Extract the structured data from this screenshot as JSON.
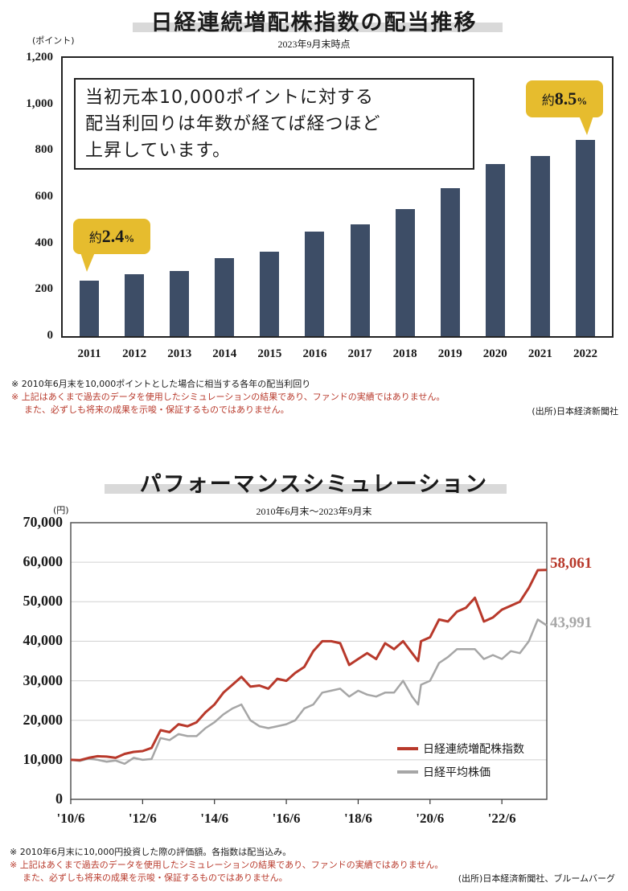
{
  "chart_data": [
    {
      "type": "bar",
      "title": "日経連続増配株指数の配当推移",
      "subtitle": "2023年9月末時点",
      "ylabel": "(ポイント)",
      "ylim": [
        0,
        1200
      ],
      "yticks": [
        "1,200",
        "1,000",
        "800",
        "600",
        "400",
        "200",
        "0"
      ],
      "ytick_values": [
        1200,
        1000,
        800,
        600,
        400,
        200,
        0
      ],
      "categories": [
        "2011",
        "2012",
        "2013",
        "2014",
        "2015",
        "2016",
        "2017",
        "2018",
        "2019",
        "2020",
        "2021",
        "2022"
      ],
      "values": [
        240,
        268,
        280,
        337,
        365,
        450,
        482,
        548,
        637,
        742,
        777,
        845
      ],
      "bar_color": "#3d4d66",
      "callout_lines": [
        "当初元本10,000ポイントに対する",
        "配当利回りは年数が経てば経つほど",
        "上昇しています。"
      ],
      "badge_first": {
        "prefix": "約",
        "value": "2.4",
        "suffix": "%"
      },
      "badge_last": {
        "prefix": "約",
        "value": "8.5",
        "suffix": "%"
      },
      "badge_color": "#e6bc2e",
      "notes": {
        "black": "※ 2010年6月末を10,000ポイントとした場合に相当する各年の配当利回り",
        "red1": "※ 上記はあくまで過去のデータを使用したシミュレーションの結果であり、ファンドの実績ではありません。",
        "red2": "また、必ずしも将来の成果を示唆・保証するものではありません。"
      },
      "source": "(出所)日本経済新聞社"
    },
    {
      "type": "line",
      "title": "パフォーマンスシミュレーション",
      "subtitle": "2010年6月末〜2023年9月末",
      "ylabel": "(円)",
      "ylim": [
        0,
        70000
      ],
      "yticks": [
        "70,000",
        "60,000",
        "50,000",
        "40,000",
        "30,000",
        "20,000",
        "10,000",
        "0"
      ],
      "ytick_values": [
        70000,
        60000,
        50000,
        40000,
        30000,
        20000,
        10000,
        0
      ],
      "xlim": [
        2010.5,
        2023.75
      ],
      "xticks": [
        "'10/6",
        "'12/6",
        "'14/6",
        "'16/6",
        "'18/6",
        "'20/6",
        "'22/6"
      ],
      "xtick_values": [
        2010.5,
        2012.5,
        2014.5,
        2016.5,
        2018.5,
        2020.5,
        2022.5
      ],
      "series": [
        {
          "name": "日経連続増配株指数",
          "color": "#b8392b",
          "end_label": "58,061",
          "x": [
            2010.5,
            2010.75,
            2011.0,
            2011.25,
            2011.5,
            2011.75,
            2012.0,
            2012.25,
            2012.5,
            2012.75,
            2013.0,
            2013.25,
            2013.5,
            2013.75,
            2014.0,
            2014.25,
            2014.5,
            2014.75,
            2015.0,
            2015.25,
            2015.5,
            2015.75,
            2016.0,
            2016.25,
            2016.5,
            2016.75,
            2017.0,
            2017.25,
            2017.5,
            2017.75,
            2018.0,
            2018.25,
            2018.5,
            2018.75,
            2019.0,
            2019.25,
            2019.5,
            2019.75,
            2020.0,
            2020.17,
            2020.25,
            2020.5,
            2020.75,
            2021.0,
            2021.25,
            2021.5,
            2021.75,
            2022.0,
            2022.25,
            2022.5,
            2022.75,
            2023.0,
            2023.25,
            2023.5,
            2023.75
          ],
          "y": [
            10000,
            9900,
            10500,
            10900,
            10800,
            10500,
            11500,
            12000,
            12200,
            13000,
            17500,
            17000,
            19000,
            18500,
            19500,
            22000,
            24000,
            27000,
            29000,
            31000,
            28500,
            28800,
            28000,
            30500,
            30000,
            32000,
            33500,
            37500,
            40000,
            40000,
            39500,
            34000,
            35500,
            37000,
            35500,
            39500,
            38000,
            40000,
            37000,
            35000,
            40000,
            41000,
            45500,
            45000,
            47500,
            48500,
            51000,
            45000,
            46000,
            48000,
            49000,
            50000,
            53500,
            58000,
            58061
          ]
        },
        {
          "name": "日経平均株価",
          "color": "#a6a6a6",
          "end_label": "43,991",
          "x": [
            2010.5,
            2010.75,
            2011.0,
            2011.25,
            2011.5,
            2011.75,
            2012.0,
            2012.25,
            2012.5,
            2012.75,
            2013.0,
            2013.25,
            2013.5,
            2013.75,
            2014.0,
            2014.25,
            2014.5,
            2014.75,
            2015.0,
            2015.25,
            2015.5,
            2015.75,
            2016.0,
            2016.25,
            2016.5,
            2016.75,
            2017.0,
            2017.25,
            2017.5,
            2017.75,
            2018.0,
            2018.25,
            2018.5,
            2018.75,
            2019.0,
            2019.25,
            2019.5,
            2019.75,
            2020.0,
            2020.17,
            2020.25,
            2020.5,
            2020.75,
            2021.0,
            2021.25,
            2021.5,
            2021.75,
            2022.0,
            2022.25,
            2022.5,
            2022.75,
            2023.0,
            2023.25,
            2023.5,
            2023.75
          ],
          "y": [
            10000,
            9700,
            10300,
            10000,
            9500,
            9800,
            9000,
            10500,
            10000,
            10200,
            15500,
            15000,
            16500,
            16000,
            16000,
            18000,
            19500,
            21500,
            23000,
            24000,
            20000,
            18500,
            18000,
            18500,
            19000,
            20000,
            23000,
            24000,
            27000,
            27500,
            28000,
            26000,
            27500,
            26500,
            26000,
            27000,
            27000,
            30000,
            26000,
            24000,
            29000,
            30000,
            34500,
            36000,
            38000,
            38000,
            38000,
            35500,
            36500,
            35500,
            37500,
            37000,
            40000,
            45500,
            43991
          ]
        }
      ],
      "notes": {
        "black": "※ 2010年6月末に10,000円投資した際の評価額。各指数は配当込み。",
        "red1": "※ 上記はあくまで過去のデータを使用したシミュレーションの結果であり、ファンドの実績ではありません。",
        "red2": "また、必ずしも将来の成果を示唆・保証するものではありません。"
      },
      "source": "(出所)日本経済新聞社、ブルームバーグ"
    }
  ]
}
